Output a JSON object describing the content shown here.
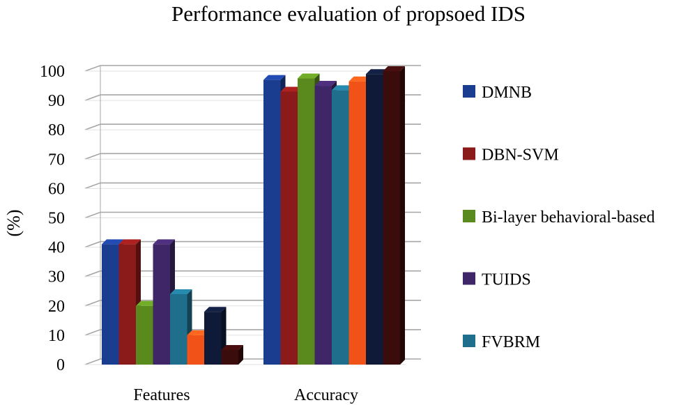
{
  "chart_data": {
    "type": "bar",
    "title": "Performance evaluation of propsoed IDS",
    "xlabel": "",
    "ylabel": "(%)",
    "ylim": [
      0,
      100
    ],
    "yticks": [
      0,
      10,
      20,
      30,
      40,
      50,
      60,
      70,
      80,
      90,
      100
    ],
    "grid": true,
    "legend_position": "right",
    "categories": [
      "Features",
      "Accuracy"
    ],
    "series": [
      {
        "name": "DMNB",
        "color": "#1b3d8f",
        "values": [
          41,
          97
        ]
      },
      {
        "name": "DBN-SVM",
        "color": "#8b1a1a",
        "values": [
          41,
          93
        ]
      },
      {
        "name": "Bi-layer behavioral-based",
        "color": "#5a8a1e",
        "values": [
          20,
          97.5
        ]
      },
      {
        "name": "TUIDS",
        "color": "#3f2666",
        "values": [
          41,
          95
        ]
      },
      {
        "name": "FVBRM",
        "color": "#1f6e8c",
        "values": [
          24,
          93.5
        ]
      },
      {
        "name": "",
        "color": "#f05218",
        "values": [
          10,
          96.5
        ]
      },
      {
        "name": "",
        "color": "#0f1a38",
        "values": [
          18,
          99
        ]
      },
      {
        "name": "",
        "color": "#3a0c0c",
        "values": [
          5,
          100
        ]
      }
    ]
  }
}
